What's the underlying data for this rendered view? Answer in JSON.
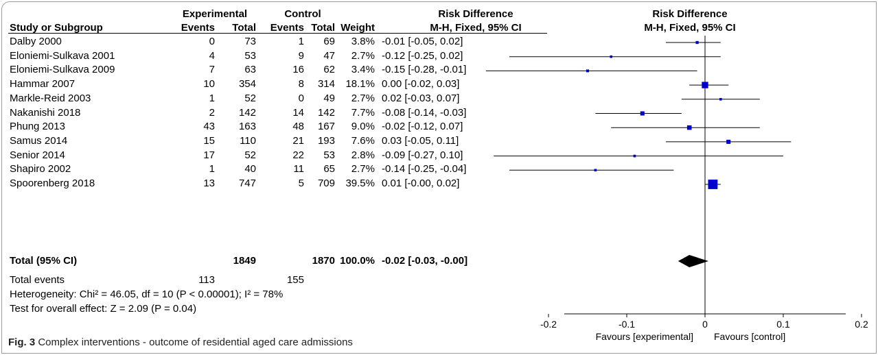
{
  "headers": {
    "study": "Study or Subgroup",
    "exp_group": "Experimental",
    "ctrl_group": "Control",
    "events": "Events",
    "total": "Total",
    "weight": "Weight",
    "rd_title": "Risk Difference",
    "rd_method": "M-H, Fixed, 95% CI",
    "plot_title": "Risk Difference",
    "plot_method": "M-H, Fixed, 95% CI"
  },
  "rows": [
    {
      "study": "Dalby 2000",
      "exp_events": "0",
      "exp_total": "73",
      "ctrl_events": "1",
      "ctrl_total": "69",
      "weight": "3.8%",
      "ci_text": "-0.01 [-0.05, 0.02]"
    },
    {
      "study": "Eloniemi-Sulkava 2001",
      "exp_events": "4",
      "exp_total": "53",
      "ctrl_events": "9",
      "ctrl_total": "47",
      "weight": "2.7%",
      "ci_text": "-0.12 [-0.25, 0.02]"
    },
    {
      "study": "Eloniemi-Sulkava 2009",
      "exp_events": "7",
      "exp_total": "63",
      "ctrl_events": "16",
      "ctrl_total": "62",
      "weight": "3.4%",
      "ci_text": "-0.15 [-0.28, -0.01]"
    },
    {
      "study": "Hammar 2007",
      "exp_events": "10",
      "exp_total": "354",
      "ctrl_events": "8",
      "ctrl_total": "314",
      "weight": "18.1%",
      "ci_text": "0.00 [-0.02, 0.03]"
    },
    {
      "study": "Markle-Reid 2003",
      "exp_events": "1",
      "exp_total": "52",
      "ctrl_events": "0",
      "ctrl_total": "49",
      "weight": "2.7%",
      "ci_text": "0.02 [-0.03, 0.07]"
    },
    {
      "study": "Nakanishi 2018",
      "exp_events": "2",
      "exp_total": "142",
      "ctrl_events": "14",
      "ctrl_total": "142",
      "weight": "7.7%",
      "ci_text": "-0.08 [-0.14, -0.03]"
    },
    {
      "study": "Phung 2013",
      "exp_events": "43",
      "exp_total": "163",
      "ctrl_events": "48",
      "ctrl_total": "167",
      "weight": "9.0%",
      "ci_text": "-0.02 [-0.12, 0.07]"
    },
    {
      "study": "Samus 2014",
      "exp_events": "15",
      "exp_total": "110",
      "ctrl_events": "21",
      "ctrl_total": "193",
      "weight": "7.6%",
      "ci_text": "0.03 [-0.05, 0.11]"
    },
    {
      "study": "Senior 2014",
      "exp_events": "17",
      "exp_total": "52",
      "ctrl_events": "22",
      "ctrl_total": "53",
      "weight": "2.8%",
      "ci_text": "-0.09 [-0.27, 0.10]"
    },
    {
      "study": "Shapiro 2002",
      "exp_events": "1",
      "exp_total": "40",
      "ctrl_events": "11",
      "ctrl_total": "65",
      "weight": "2.7%",
      "ci_text": "-0.14 [-0.25, -0.04]"
    },
    {
      "study": "Spoorenberg 2018",
      "exp_events": "13",
      "exp_total": "747",
      "ctrl_events": "5",
      "ctrl_total": "709",
      "weight": "39.5%",
      "ci_text": "0.01 [-0.00, 0.02]"
    }
  ],
  "total": {
    "label": "Total (95% CI)",
    "exp_total": "1849",
    "ctrl_total": "1870",
    "weight": "100.0%",
    "ci_text": "-0.02 [-0.03, -0.00]"
  },
  "total_events": {
    "label": "Total events",
    "exp": "113",
    "ctrl": "155"
  },
  "heterogeneity": "Heterogeneity: Chi² = 46.05, df = 10 (P < 0.00001); I² = 78%",
  "overall_effect": "Test for overall effect: Z = 2.09 (P = 0.04)",
  "caption": {
    "label": "Fig. 3",
    "text": "Complex interventions - outcome of residential aged care admissions"
  },
  "colors": {
    "study_marker": "#0000cc",
    "summary_diamond": "#000000",
    "frame": "#9a9a9a"
  },
  "chart_data": {
    "type": "forest",
    "title": "Risk Difference",
    "subtitle": "M-H, Fixed, 95% CI",
    "xlim": [
      -0.3,
      0.3
    ],
    "xticks": [
      -0.2,
      -0.1,
      0,
      0.1,
      0.2
    ],
    "xtick_labels": [
      "-0.2",
      "-0.1",
      "0",
      "0.1",
      "0.2"
    ],
    "xlabel_left": "Favours [experimental]",
    "xlabel_right": "Favours [control]",
    "studies": [
      {
        "estimate": -0.01,
        "lower": -0.05,
        "upper": 0.02,
        "weight": 3.8
      },
      {
        "estimate": -0.12,
        "lower": -0.25,
        "upper": 0.02,
        "weight": 2.7
      },
      {
        "estimate": -0.15,
        "lower": -0.28,
        "upper": -0.01,
        "weight": 3.4
      },
      {
        "estimate": 0.0,
        "lower": -0.02,
        "upper": 0.03,
        "weight": 18.1
      },
      {
        "estimate": 0.02,
        "lower": -0.03,
        "upper": 0.07,
        "weight": 2.7
      },
      {
        "estimate": -0.08,
        "lower": -0.14,
        "upper": -0.03,
        "weight": 7.7
      },
      {
        "estimate": -0.02,
        "lower": -0.12,
        "upper": 0.07,
        "weight": 9.0
      },
      {
        "estimate": 0.03,
        "lower": -0.05,
        "upper": 0.11,
        "weight": 7.6
      },
      {
        "estimate": -0.09,
        "lower": -0.27,
        "upper": 0.1,
        "weight": 2.8
      },
      {
        "estimate": -0.14,
        "lower": -0.25,
        "upper": -0.04,
        "weight": 2.7
      },
      {
        "estimate": 0.01,
        "lower": -0.0,
        "upper": 0.02,
        "weight": 39.5
      }
    ],
    "summary": {
      "estimate": -0.02,
      "lower": -0.03,
      "upper": -0.0
    }
  }
}
